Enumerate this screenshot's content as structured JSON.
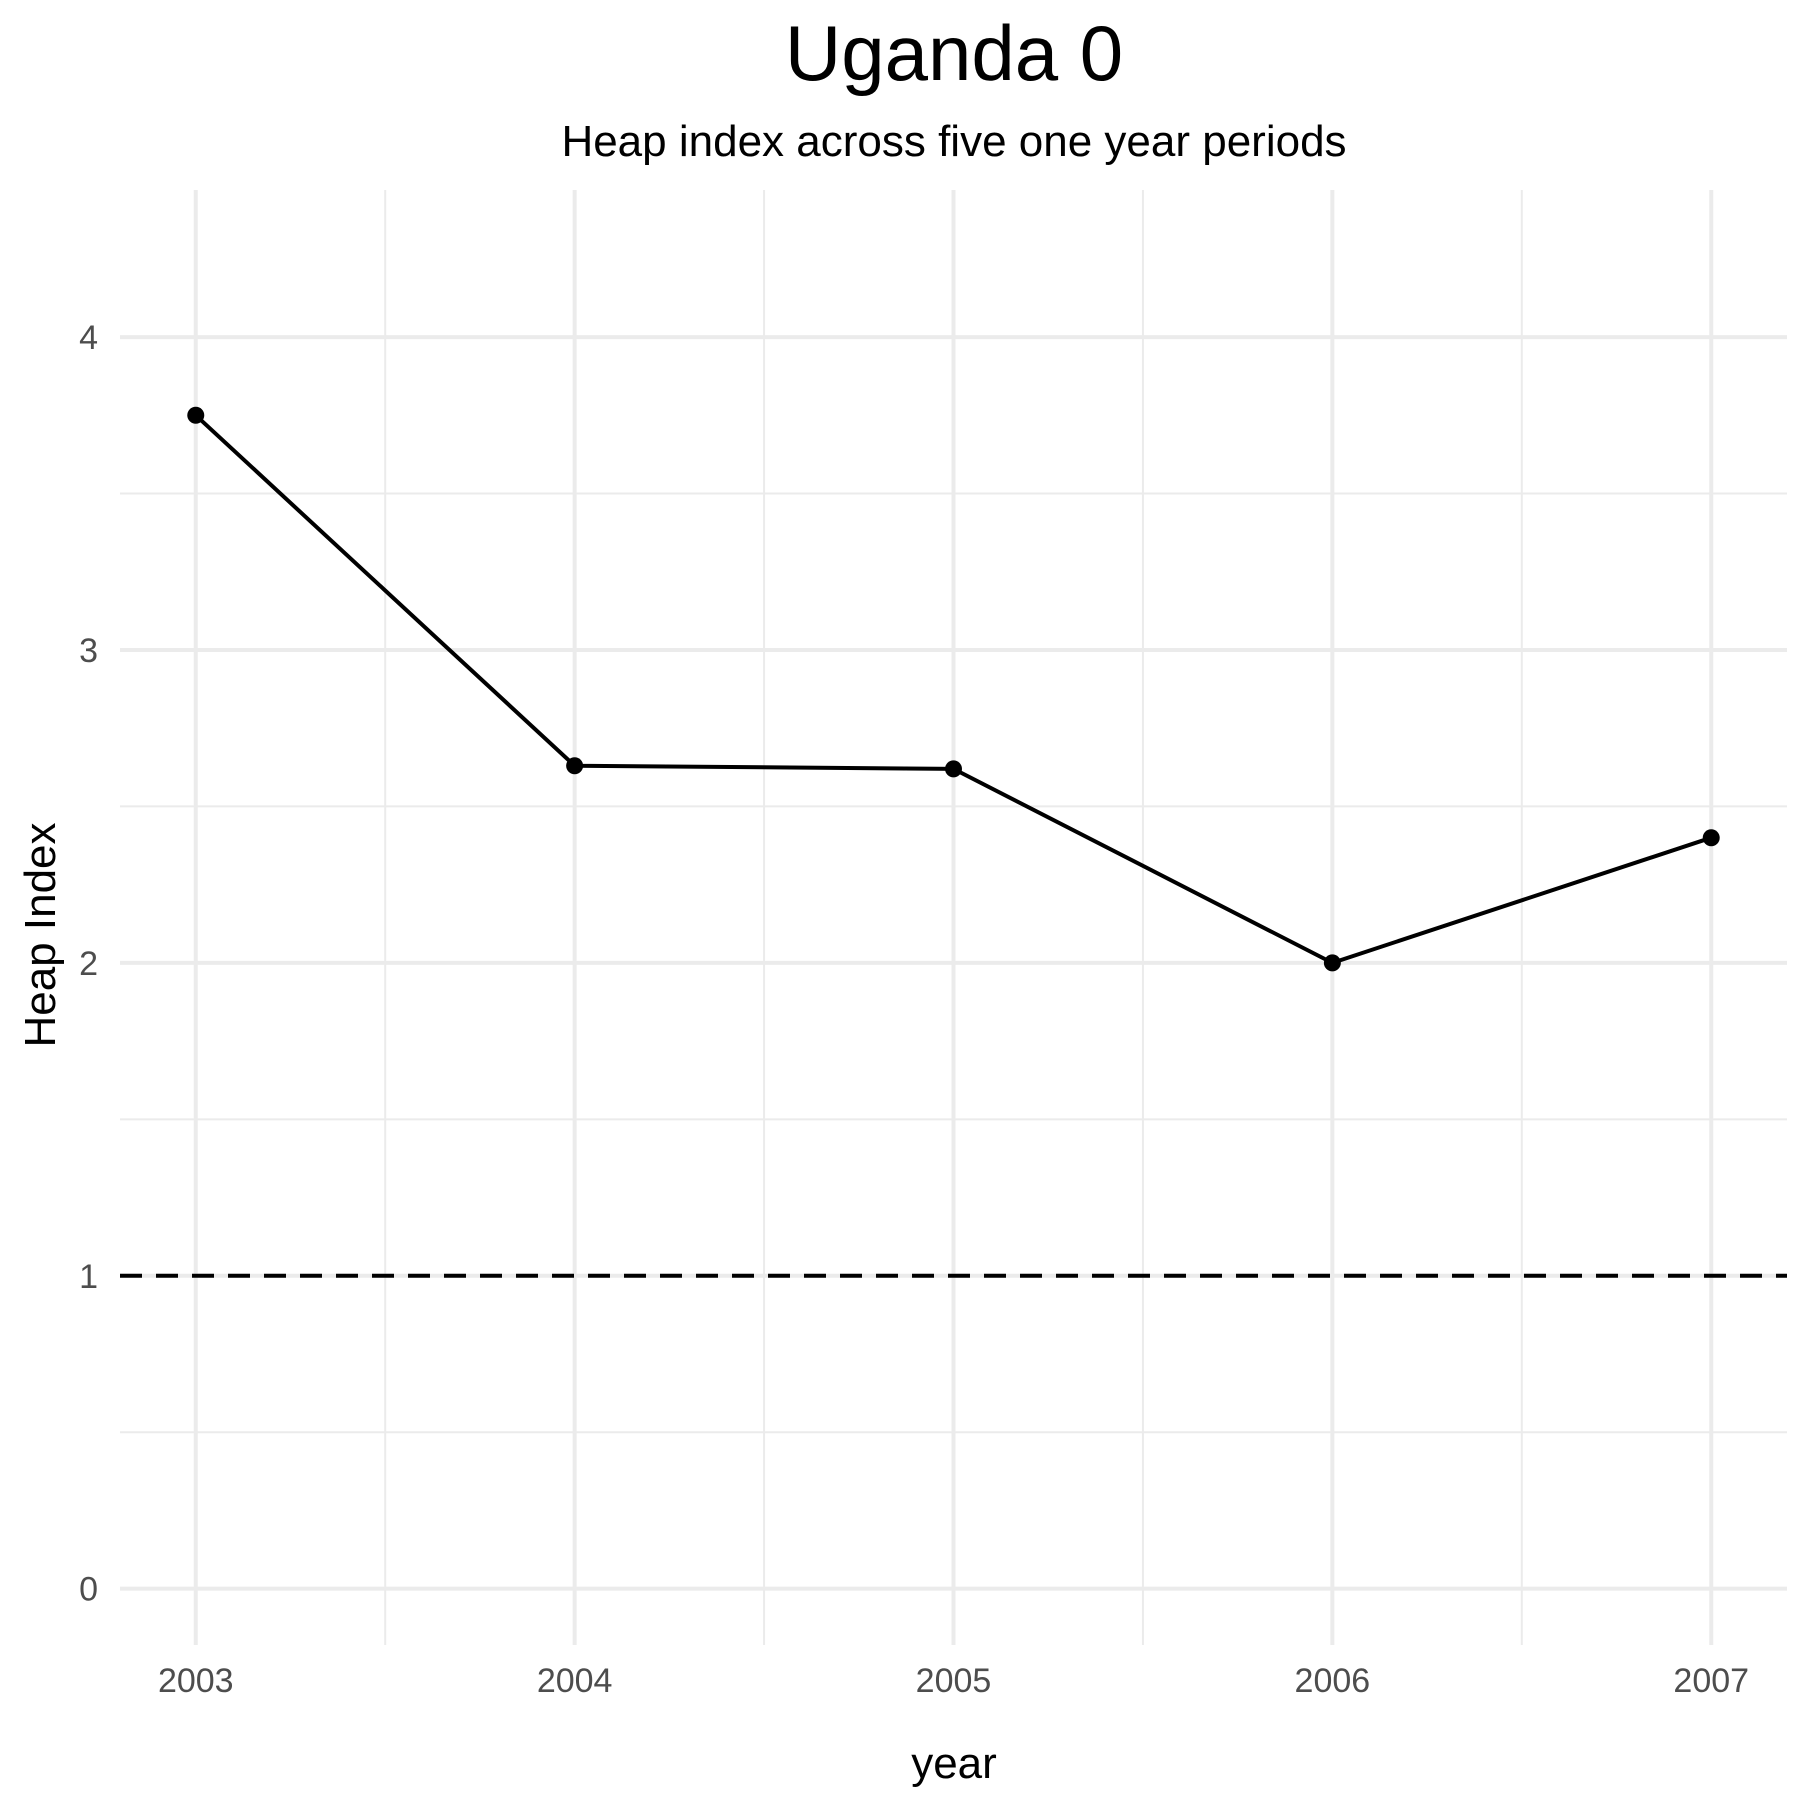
{
  "chart_data": {
    "type": "line",
    "title": "Uganda 0",
    "subtitle": "Heap index across five one year periods",
    "xlabel": "year",
    "ylabel": "Heap Index",
    "x": [
      2003,
      2004,
      2005,
      2006,
      2007
    ],
    "series": [
      {
        "values": [
          3.75,
          2.63,
          2.62,
          2.0,
          2.4
        ],
        "color": "#000000",
        "marker": "circle"
      }
    ],
    "xlim": [
      2002.8,
      2007.2
    ],
    "ylim": [
      -0.18,
      4.47
    ],
    "x_ticks": [
      2003,
      2004,
      2005,
      2006,
      2007
    ],
    "x_tick_labels": [
      "2003",
      "2004",
      "2005",
      "2006",
      "2007"
    ],
    "y_ticks": [
      0,
      1,
      2,
      3,
      4
    ],
    "y_tick_labels": [
      "0",
      "1",
      "2",
      "3",
      "4"
    ],
    "reference_line": {
      "y": 1,
      "style": "dashed",
      "color": "#000000"
    },
    "grid": true,
    "grid_color": "#ebebeb",
    "legend": "none"
  }
}
